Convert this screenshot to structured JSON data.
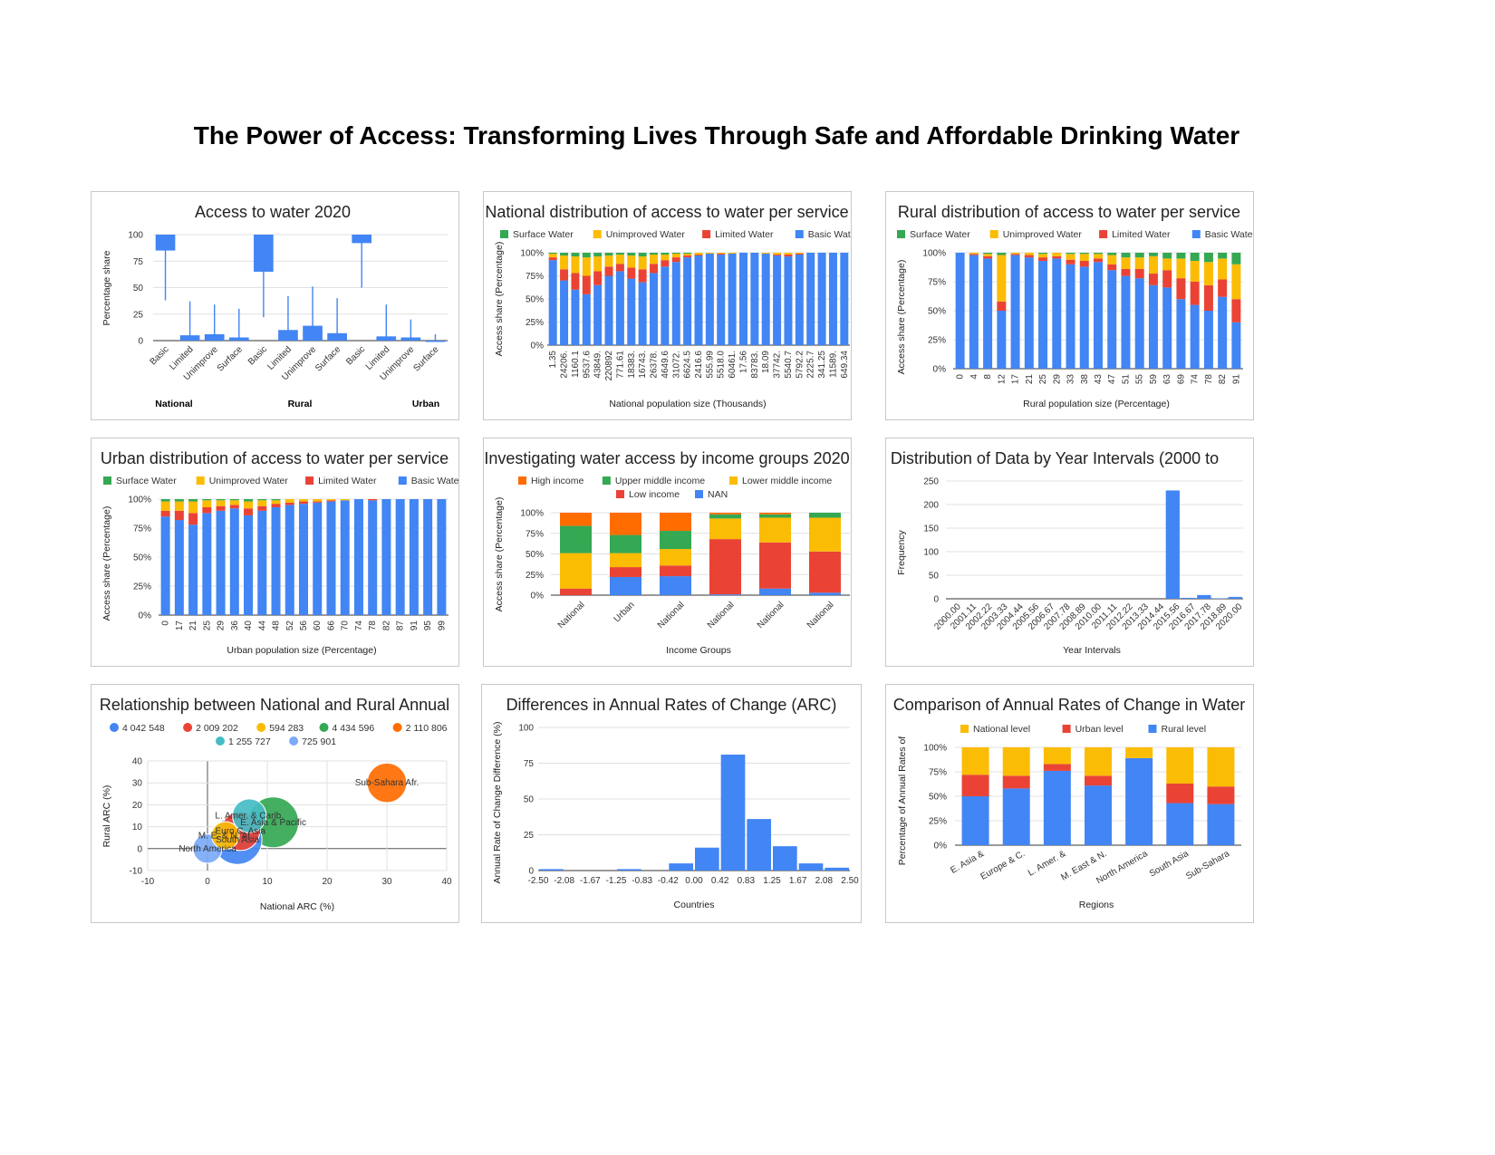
{
  "page": {
    "title": "The Power of Access: Transforming Lives Through Safe and Affordable Drinking Water"
  },
  "colors": {
    "blue": "#4285f4",
    "red": "#ea4335",
    "yellow": "#fbbc04",
    "green": "#34a853",
    "orange": "#ff6d01",
    "teal": "#46bdc6",
    "lightblue": "#7baaf7",
    "grid": "#e0e0e0"
  },
  "chart_data": [
    {
      "type": "candlestick",
      "title": "Access to water 2020",
      "ylabel": "Percentage share",
      "xlabel": "",
      "ylim": [
        0,
        100
      ],
      "yticks": [
        "0",
        "25",
        "50",
        "75",
        "100"
      ],
      "groups": [
        "National",
        "Rural",
        "Urban"
      ],
      "categories": [
        "Basic",
        "Limited",
        "Unimprove",
        "Surface",
        "Basic",
        "Limited",
        "Unimprove",
        "Surface",
        "Basic",
        "Limited",
        "Unimprove",
        "Surface"
      ],
      "low": [
        38,
        0,
        0,
        0,
        22,
        0,
        0,
        0,
        50,
        0,
        0,
        0
      ],
      "open": [
        85,
        0,
        0,
        0,
        65,
        0,
        0,
        0,
        92,
        0,
        0,
        0
      ],
      "close": [
        100,
        5,
        6,
        3,
        100,
        10,
        14,
        7,
        100,
        4,
        3,
        0
      ],
      "high": [
        100,
        37,
        34,
        30,
        100,
        42,
        51,
        40,
        100,
        34,
        20,
        6
      ]
    },
    {
      "type": "bar",
      "stacked": true,
      "title": "National distribution of access to water per service",
      "xlabel": "National population size (Thousands)",
      "ylabel": "Access share (Percentage)",
      "yticks": [
        "0%",
        "25%",
        "50%",
        "75%",
        "100%"
      ],
      "legend": [
        "Surface Water",
        "Unimproved Water",
        "Limited Water",
        "Basic Water"
      ],
      "legend_position": "top",
      "xticks": [
        "1.35",
        "24206.",
        "1160.1",
        "9537.6",
        "43849.",
        "220892",
        "771.61",
        "18383.",
        "16743.",
        "26378.",
        "4649.6",
        "31072.",
        "6624.5",
        "2416.6",
        "555.99",
        "5518.0",
        "60461.",
        "17.56",
        "83783.",
        "18.09",
        "37742.",
        "5540.7",
        "5792.2",
        "2225.7",
        "341.25",
        "11589.",
        "649.34"
      ],
      "series": [
        {
          "name": "Basic Water",
          "values": [
            92,
            70,
            60,
            55,
            65,
            75,
            80,
            72,
            68,
            78,
            85,
            90,
            95,
            97,
            99,
            98,
            99,
            100,
            100,
            99,
            97,
            96,
            98,
            100,
            100,
            100,
            100
          ]
        },
        {
          "name": "Limited Water",
          "values": [
            3,
            12,
            18,
            20,
            15,
            10,
            8,
            12,
            14,
            10,
            7,
            5,
            2,
            1,
            0,
            1,
            0,
            0,
            0,
            0,
            1,
            2,
            1,
            0,
            0,
            0,
            0
          ]
        },
        {
          "name": "Unimproved Water",
          "values": [
            4,
            15,
            18,
            20,
            16,
            12,
            10,
            13,
            14,
            10,
            6,
            4,
            2,
            2,
            1,
            1,
            1,
            0,
            0,
            1,
            2,
            2,
            1,
            0,
            0,
            0,
            0
          ]
        },
        {
          "name": "Surface Water",
          "values": [
            1,
            3,
            4,
            5,
            4,
            3,
            2,
            3,
            4,
            2,
            2,
            1,
            1,
            0,
            0,
            0,
            0,
            0,
            0,
            0,
            0,
            0,
            0,
            0,
            0,
            0,
            0
          ]
        }
      ]
    },
    {
      "type": "bar",
      "stacked": true,
      "title": "Rural distribution of access to water per service",
      "xlabel": "Rural population size (Percentage)",
      "ylabel": "Access share (Percentage)",
      "yticks": [
        "0%",
        "25%",
        "50%",
        "75%",
        "100%"
      ],
      "legend": [
        "Surface Water",
        "Unimproved Water",
        "Limited Water",
        "Basic Water"
      ],
      "legend_position": "top",
      "xticks": [
        "0",
        "4",
        "8",
        "12",
        "17",
        "21",
        "25",
        "29",
        "33",
        "38",
        "43",
        "47",
        "51",
        "55",
        "59",
        "63",
        "69",
        "74",
        "78",
        "82",
        "91"
      ],
      "series": [
        {
          "name": "Basic Water",
          "values": [
            100,
            98,
            95,
            50,
            98,
            96,
            93,
            95,
            90,
            88,
            92,
            85,
            80,
            78,
            72,
            70,
            60,
            55,
            50,
            62,
            40
          ]
        },
        {
          "name": "Limited Water",
          "values": [
            0,
            1,
            2,
            8,
            1,
            2,
            3,
            2,
            4,
            5,
            3,
            5,
            6,
            8,
            10,
            15,
            18,
            20,
            22,
            15,
            20
          ]
        },
        {
          "name": "Unimproved Water",
          "values": [
            0,
            1,
            2,
            40,
            1,
            2,
            3,
            3,
            5,
            6,
            4,
            8,
            10,
            10,
            15,
            10,
            17,
            18,
            20,
            18,
            30
          ]
        },
        {
          "name": "Surface Water",
          "values": [
            0,
            0,
            1,
            2,
            0,
            0,
            1,
            0,
            1,
            1,
            1,
            2,
            4,
            4,
            3,
            5,
            5,
            7,
            8,
            5,
            10
          ]
        }
      ]
    },
    {
      "type": "bar",
      "stacked": true,
      "title": "Urban distribution of access to water per service",
      "xlabel": "Urban population size (Percentage)",
      "ylabel": "Access share (Percentage)",
      "yticks": [
        "0%",
        "25%",
        "50%",
        "75%",
        "100%"
      ],
      "legend": [
        "Surface Water",
        "Unimproved Water",
        "Limited Water",
        "Basic Water"
      ],
      "legend_position": "top",
      "xticks": [
        "0",
        "17",
        "21",
        "25",
        "29",
        "36",
        "40",
        "44",
        "48",
        "52",
        "56",
        "60",
        "66",
        "70",
        "74",
        "78",
        "82",
        "87",
        "91",
        "95",
        "99"
      ],
      "series": [
        {
          "name": "Basic Water",
          "values": [
            85,
            82,
            78,
            88,
            90,
            92,
            86,
            90,
            93,
            95,
            96,
            97,
            98,
            99,
            100,
            99,
            100,
            100,
            100,
            100,
            100
          ]
        },
        {
          "name": "Limited Water",
          "values": [
            5,
            8,
            10,
            5,
            4,
            3,
            6,
            4,
            3,
            2,
            2,
            1,
            1,
            0,
            0,
            1,
            0,
            0,
            0,
            0,
            0
          ]
        },
        {
          "name": "Unimproved Water",
          "values": [
            8,
            8,
            10,
            6,
            5,
            4,
            6,
            5,
            3,
            3,
            2,
            2,
            1,
            1,
            0,
            0,
            0,
            0,
            0,
            0,
            0
          ]
        },
        {
          "name": "Surface Water",
          "values": [
            2,
            2,
            2,
            1,
            1,
            1,
            2,
            1,
            1,
            0,
            0,
            0,
            0,
            0,
            0,
            0,
            0,
            0,
            0,
            0,
            0
          ]
        }
      ]
    },
    {
      "type": "bar",
      "stacked": true,
      "title": "Investigating water access by income groups 2020",
      "xlabel": "Income Groups",
      "ylabel": "Access share (Percentage)",
      "yticks": [
        "0%",
        "25%",
        "50%",
        "75%",
        "100%"
      ],
      "legend": [
        "High income",
        "Upper middle income",
        "Lower middle income",
        "Low income",
        "NAN"
      ],
      "legend_position": "top",
      "categories": [
        "National",
        "Urban",
        "National",
        "National",
        "National",
        "National"
      ],
      "series": [
        {
          "name": "NAN",
          "values": [
            0,
            22,
            23,
            1,
            8,
            3
          ]
        },
        {
          "name": "Low income",
          "values": [
            8,
            12,
            13,
            67,
            56,
            50
          ]
        },
        {
          "name": "Lower middle income",
          "values": [
            43,
            17,
            20,
            25,
            30,
            41
          ]
        },
        {
          "name": "Upper middle income",
          "values": [
            33,
            22,
            22,
            5,
            4,
            6
          ]
        },
        {
          "name": "High income",
          "values": [
            16,
            27,
            22,
            2,
            2,
            0
          ]
        }
      ]
    },
    {
      "type": "bar",
      "title": "Distribution of Data by Year Intervals (2000 to",
      "xlabel": "Year Intervals",
      "ylabel": "Frequency",
      "ylim": [
        0,
        250
      ],
      "yticks": [
        "0",
        "50",
        "100",
        "150",
        "200",
        "250"
      ],
      "categories": [
        "2000.00",
        "2001.11",
        "2002.22",
        "2003.33",
        "2004.44",
        "2005.56",
        "2006.67",
        "2007.78",
        "2008.89",
        "2010.00",
        "2011.11",
        "2012.22",
        "2013.33",
        "2014.44",
        "2015.56",
        "2016.67",
        "2017.78",
        "2018.89",
        "2020.00"
      ],
      "values": [
        0,
        0,
        0,
        0,
        0,
        0,
        0,
        0,
        0,
        0,
        0,
        0,
        0,
        0,
        230,
        2,
        8,
        1,
        4
      ]
    },
    {
      "type": "scatter",
      "title": "Relationship between National and Rural Annual",
      "xlabel": "National ARC (%)",
      "ylabel": "Rural ARC (%)",
      "xlim": [
        -10,
        40
      ],
      "ylim": [
        -10,
        40
      ],
      "xticks": [
        "-10",
        "0",
        "10",
        "20",
        "30",
        "40"
      ],
      "yticks": [
        "-10",
        "0",
        "10",
        "20",
        "30",
        "40"
      ],
      "legend": [
        "4 042 548",
        "2 009 202",
        "594 283",
        "4 434 596",
        "2 110 806",
        "1 255 727",
        "725 901"
      ],
      "legend_position": "top",
      "points": [
        {
          "legend": "4 042 548",
          "label": "South Asia",
          "x": 5,
          "y": 4,
          "size": 4042548
        },
        {
          "legend": "2 009 202",
          "label": "Euro C. Asia",
          "x": 5.5,
          "y": 8,
          "size": 2009202
        },
        {
          "legend": "594 283",
          "label": "M. E. & N. Af.",
          "x": 3,
          "y": 6,
          "size": 594283
        },
        {
          "legend": "4 434 596",
          "label": "E. Asia & Pacific",
          "x": 11,
          "y": 12,
          "size": 4434596
        },
        {
          "legend": "2 110 806",
          "label": "Sub-Sahara Afr.",
          "x": 30,
          "y": 30,
          "size": 2110806
        },
        {
          "legend": "1 255 727",
          "label": "L. Amer. & Carib.",
          "x": 7,
          "y": 15,
          "size": 1255727
        },
        {
          "legend": "725 901",
          "label": "North America",
          "x": 0,
          "y": 0,
          "size": 725901
        }
      ]
    },
    {
      "type": "bar",
      "title": "Differences in Annual Rates of Change (ARC)",
      "xlabel": "Countries",
      "ylabel": "Annual Rate of Change Difference (%)",
      "ylim": [
        0,
        100
      ],
      "yticks": [
        "0",
        "25",
        "50",
        "75",
        "100"
      ],
      "xticks": [
        "-2.50",
        "-2.08",
        "-1.67",
        "-1.25",
        "-0.83",
        "-0.42",
        "0.00",
        "0.42",
        "0.83",
        "1.25",
        "1.67",
        "2.08",
        "2.50"
      ],
      "values": [
        1,
        0,
        0,
        1,
        0,
        5,
        16,
        81,
        36,
        17,
        5,
        2,
        1
      ]
    },
    {
      "type": "bar",
      "stacked": true,
      "title": "Comparison of Annual Rates of Change in Water",
      "xlabel": "Regions",
      "ylabel": "Percentage of Annual Rates of",
      "yticks": [
        "0%",
        "25%",
        "50%",
        "75%",
        "100%"
      ],
      "legend": [
        "National level",
        "Urban level",
        "Rural level"
      ],
      "legend_position": "top",
      "categories": [
        "E. Asia &",
        "Europe & C.",
        "L. Amer. &",
        "M. East & N.",
        "North America",
        "South Asia",
        "Sub-Sahara"
      ],
      "series": [
        {
          "name": "Rural level",
          "values": [
            50,
            58,
            76,
            61,
            89,
            43,
            42
          ]
        },
        {
          "name": "Urban level",
          "values": [
            22,
            13,
            7,
            10,
            0,
            20,
            18
          ]
        },
        {
          "name": "National level",
          "values": [
            28,
            29,
            17,
            29,
            11,
            37,
            40
          ]
        }
      ]
    }
  ]
}
